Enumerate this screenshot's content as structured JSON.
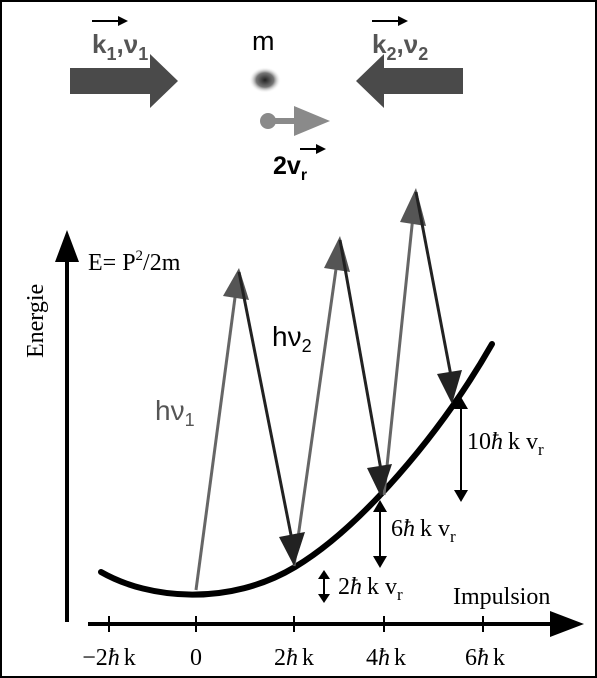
{
  "beams": {
    "left": {
      "k": "k",
      "k_sub": "1",
      "sep": ",",
      "nu": "ν",
      "nu_sub": "1"
    },
    "right": {
      "k": "k",
      "k_sub": "2",
      "sep": ",",
      "nu": "ν",
      "nu_sub": "2"
    }
  },
  "atom": {
    "mass_label": "m",
    "recoil_value": "2v",
    "recoil_sub": "r"
  },
  "axes": {
    "y_label": "Energie",
    "x_label": "Impulsion",
    "energy_formula": {
      "lhs": "E= P",
      "exp": "2",
      "rhs": "/2m"
    }
  },
  "x_ticks": [
    {
      "coef": "−2",
      "hbar": "ħ",
      "unit": "k"
    },
    {
      "coef": "0",
      "hbar": "",
      "unit": ""
    },
    {
      "coef": "2",
      "hbar": "ħ",
      "unit": "k"
    },
    {
      "coef": "4",
      "hbar": "ħ",
      "unit": "k"
    },
    {
      "coef": "6",
      "hbar": "ħ",
      "unit": "k"
    }
  ],
  "photons": {
    "absorb": {
      "h": "h",
      "nu": "ν",
      "sub": "1"
    },
    "emit": {
      "h": "h",
      "nu": "ν",
      "sub": "2"
    }
  },
  "energy_gaps": [
    {
      "coef": "2",
      "hbar": "ħ",
      "k": "k",
      "v": "v",
      "sub": "r"
    },
    {
      "coef": "6",
      "hbar": "ħ",
      "k": "k",
      "v": "v",
      "sub": "r"
    },
    {
      "coef": "10",
      "hbar": "ħ",
      "k": "k",
      "v": "v",
      "sub": "r"
    }
  ],
  "colors": {
    "beam_arrow": "#4a4a4a",
    "recoil_arrow": "#8a8a8a",
    "absorb_line": "#666666",
    "emit_line": "#222222",
    "parabola": "#000000"
  }
}
